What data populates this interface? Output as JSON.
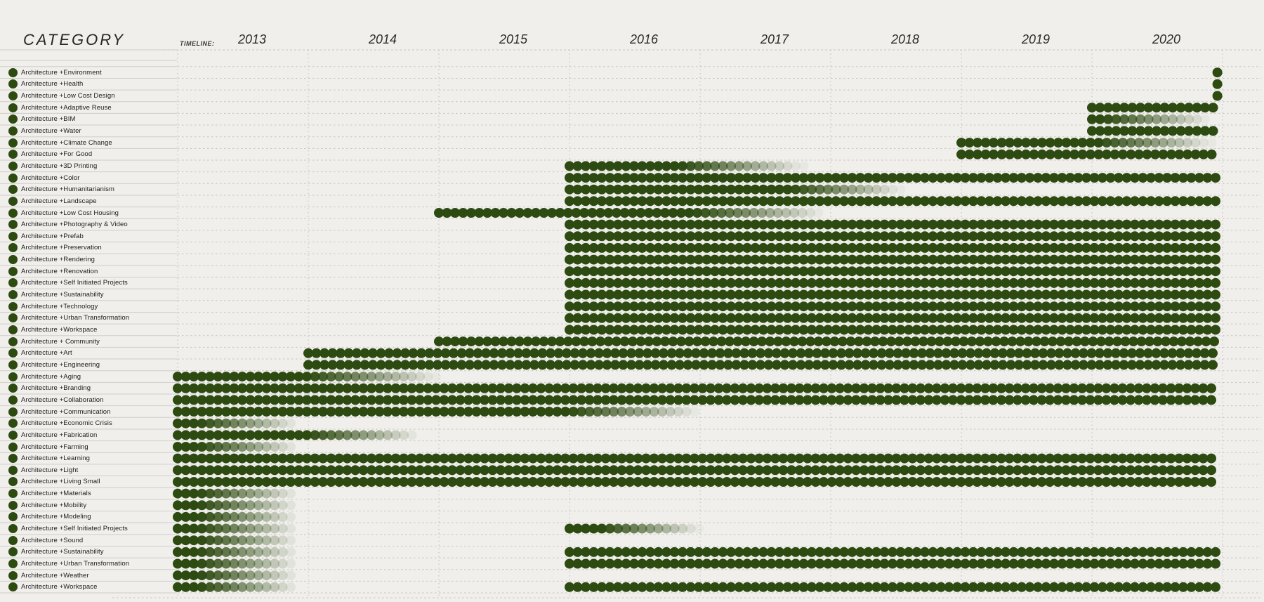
{
  "header": {
    "category_label": "CATEGORY",
    "timeline_label": "TIMELINE:"
  },
  "colors": {
    "bar_green": "#2d4a11",
    "background": "#f0efec",
    "plot_dash_line": "#c6c5bf",
    "column_separator": "#cfcec8",
    "text": "#1c1c1c"
  },
  "chart_data": {
    "type": "gantt-dot-timeline",
    "title": "CATEGORY",
    "x_axis": {
      "tick_years": [
        2013,
        2014,
        2015,
        2016,
        2017,
        2018,
        2019,
        2020
      ],
      "range_start": 2013.0,
      "range_end": 2021.0,
      "grid": "dashed-vertical-at-year-boundaries"
    },
    "legend": "none",
    "rows": [
      {
        "label": "Architecture +Environment",
        "segments": [
          {
            "start": 2020.96,
            "solid_until": 2020.96,
            "end": 2020.96
          }
        ]
      },
      {
        "label": "Architecture +Health",
        "segments": [
          {
            "start": 2020.96,
            "solid_until": 2020.96,
            "end": 2020.96
          }
        ]
      },
      {
        "label": "Architecture +Low Cost Design",
        "segments": [
          {
            "start": 2020.96,
            "solid_until": 2020.96,
            "end": 2020.96
          }
        ]
      },
      {
        "label": "Architecture +Adaptive Reuse",
        "segments": [
          {
            "start": 2020.0,
            "solid_until": 2020.97,
            "end": 2020.97
          }
        ]
      },
      {
        "label": "Architecture +BIM",
        "segments": [
          {
            "start": 2020.0,
            "solid_until": 2020.1,
            "end": 2020.9
          }
        ]
      },
      {
        "label": "Architecture +Water",
        "segments": [
          {
            "start": 2020.0,
            "solid_until": 2020.97,
            "end": 2020.97
          }
        ]
      },
      {
        "label": "Architecture +Climate Change",
        "segments": [
          {
            "start": 2019.0,
            "solid_until": 2020.05,
            "end": 2020.92
          }
        ]
      },
      {
        "label": "Architecture +For Good",
        "segments": [
          {
            "start": 2019.0,
            "solid_until": 2020.97,
            "end": 2020.97
          }
        ]
      },
      {
        "label": "Architecture +3D Printing",
        "segments": [
          {
            "start": 2016.0,
            "solid_until": 2016.85,
            "end": 2017.8
          }
        ]
      },
      {
        "label": "Architecture +Color",
        "segments": [
          {
            "start": 2016.0,
            "solid_until": 2020.97,
            "end": 2020.97
          }
        ]
      },
      {
        "label": "Architecture +Humanitarianism",
        "segments": [
          {
            "start": 2016.0,
            "solid_until": 2017.7,
            "end": 2018.55
          }
        ]
      },
      {
        "label": "Architecture +Landscape",
        "segments": [
          {
            "start": 2016.0,
            "solid_until": 2020.97,
            "end": 2020.97
          }
        ]
      },
      {
        "label": "Architecture +Low Cost Housing",
        "segments": [
          {
            "start": 2015.0,
            "solid_until": 2016.95,
            "end": 2017.95
          }
        ]
      },
      {
        "label": "Architecture +Photography & Video",
        "segments": [
          {
            "start": 2016.0,
            "solid_until": 2020.97,
            "end": 2020.97
          }
        ]
      },
      {
        "label": "Architecture +Prefab",
        "segments": [
          {
            "start": 2016.0,
            "solid_until": 2020.97,
            "end": 2020.97
          }
        ]
      },
      {
        "label": "Architecture +Preservation",
        "segments": [
          {
            "start": 2016.0,
            "solid_until": 2020.97,
            "end": 2020.97
          }
        ]
      },
      {
        "label": "Architecture +Rendering",
        "segments": [
          {
            "start": 2016.0,
            "solid_until": 2020.97,
            "end": 2020.97
          }
        ]
      },
      {
        "label": "Architecture +Renovation",
        "segments": [
          {
            "start": 2016.0,
            "solid_until": 2020.97,
            "end": 2020.97
          }
        ]
      },
      {
        "label": "Architecture +Self Initiated Projects",
        "segments": [
          {
            "start": 2016.0,
            "solid_until": 2020.97,
            "end": 2020.97
          }
        ]
      },
      {
        "label": "Architecture +Sustainability",
        "segments": [
          {
            "start": 2016.0,
            "solid_until": 2020.97,
            "end": 2020.97
          }
        ]
      },
      {
        "label": "Architecture +Technology",
        "segments": [
          {
            "start": 2016.0,
            "solid_until": 2020.97,
            "end": 2020.97
          }
        ]
      },
      {
        "label": "Architecture +Urban Transformation",
        "segments": [
          {
            "start": 2016.0,
            "solid_until": 2020.97,
            "end": 2020.97
          }
        ]
      },
      {
        "label": "Architecture +Workspace",
        "segments": [
          {
            "start": 2016.0,
            "solid_until": 2020.97,
            "end": 2020.97
          }
        ]
      },
      {
        "label": "Architecture + Community",
        "segments": [
          {
            "start": 2015.0,
            "solid_until": 2020.97,
            "end": 2020.97
          }
        ]
      },
      {
        "label": "Architecture +Art",
        "segments": [
          {
            "start": 2014.0,
            "solid_until": 2020.97,
            "end": 2020.97
          }
        ]
      },
      {
        "label": "Architecture +Engineering",
        "segments": [
          {
            "start": 2014.0,
            "solid_until": 2020.97,
            "end": 2020.97
          }
        ]
      },
      {
        "label": "Architecture +Aging",
        "segments": [
          {
            "start": 2013.0,
            "solid_until": 2014.0,
            "end": 2015.0
          }
        ]
      },
      {
        "label": "Architecture +Branding",
        "segments": [
          {
            "start": 2013.0,
            "solid_until": 2020.97,
            "end": 2020.97
          }
        ]
      },
      {
        "label": "Architecture +Collaboration",
        "segments": [
          {
            "start": 2013.0,
            "solid_until": 2020.97,
            "end": 2020.97
          }
        ]
      },
      {
        "label": "Architecture +Communication",
        "segments": [
          {
            "start": 2013.0,
            "solid_until": 2016.0,
            "end": 2017.0
          }
        ]
      },
      {
        "label": "Architecture +Economic Crisis",
        "segments": [
          {
            "start": 2013.0,
            "solid_until": 2013.17,
            "end": 2013.92
          }
        ]
      },
      {
        "label": "Architecture +Fabrication",
        "segments": [
          {
            "start": 2013.0,
            "solid_until": 2014.0,
            "end": 2014.85
          }
        ]
      },
      {
        "label": "Architecture +Farming",
        "segments": [
          {
            "start": 2013.0,
            "solid_until": 2013.17,
            "end": 2013.92
          }
        ]
      },
      {
        "label": "Architecture +Learning",
        "segments": [
          {
            "start": 2013.0,
            "solid_until": 2020.97,
            "end": 2020.97
          }
        ]
      },
      {
        "label": "Architecture +Light",
        "segments": [
          {
            "start": 2013.0,
            "solid_until": 2020.97,
            "end": 2020.97
          }
        ]
      },
      {
        "label": "Architecture +Living Small",
        "segments": [
          {
            "start": 2013.0,
            "solid_until": 2020.97,
            "end": 2020.97
          }
        ]
      },
      {
        "label": "Architecture +Materials",
        "segments": [
          {
            "start": 2013.0,
            "solid_until": 2013.17,
            "end": 2013.92
          }
        ]
      },
      {
        "label": "Architecture +Mobility",
        "segments": [
          {
            "start": 2013.0,
            "solid_until": 2013.17,
            "end": 2013.92
          }
        ]
      },
      {
        "label": "Architecture +Modeling",
        "segments": [
          {
            "start": 2013.0,
            "solid_until": 2013.17,
            "end": 2013.92
          }
        ]
      },
      {
        "label": "Architecture +Self Initiated Projects",
        "segments": [
          {
            "start": 2013.0,
            "solid_until": 2013.17,
            "end": 2013.92
          },
          {
            "start": 2016.0,
            "solid_until": 2016.25,
            "end": 2017.0
          }
        ]
      },
      {
        "label": "Architecture +Sound",
        "segments": [
          {
            "start": 2013.0,
            "solid_until": 2013.17,
            "end": 2013.92
          }
        ]
      },
      {
        "label": "Architecture +Sustainability",
        "segments": [
          {
            "start": 2013.0,
            "solid_until": 2013.17,
            "end": 2013.92
          },
          {
            "start": 2016.0,
            "solid_until": 2020.97,
            "end": 2020.97
          }
        ]
      },
      {
        "label": "Architecture +Urban Transformation",
        "segments": [
          {
            "start": 2013.0,
            "solid_until": 2013.17,
            "end": 2013.92
          },
          {
            "start": 2016.0,
            "solid_until": 2020.97,
            "end": 2020.97
          }
        ]
      },
      {
        "label": "Architecture +Weather",
        "segments": [
          {
            "start": 2013.0,
            "solid_until": 2013.17,
            "end": 2013.92
          }
        ]
      },
      {
        "label": "Architecture +Workspace",
        "segments": [
          {
            "start": 2013.0,
            "solid_until": 2013.17,
            "end": 2013.92
          },
          {
            "start": 2016.0,
            "solid_until": 2020.97,
            "end": 2020.97
          }
        ]
      }
    ]
  }
}
